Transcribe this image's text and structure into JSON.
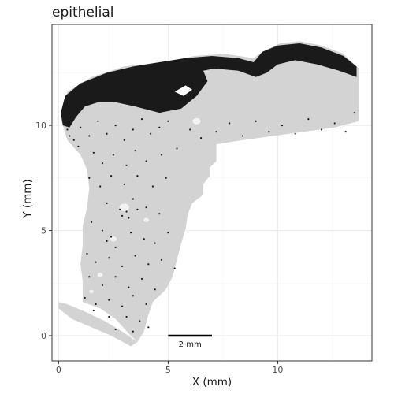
{
  "chart_data": {
    "type": "scatter",
    "title": "epithelial",
    "xlabel": "X (mm)",
    "ylabel": "Y (mm)",
    "xlim": [
      -0.3,
      14.3
    ],
    "ylim": [
      -1.2,
      14.8
    ],
    "x_ticks": [
      0,
      5,
      10
    ],
    "y_ticks": [
      0,
      5,
      10
    ],
    "grid": true,
    "legend": "none",
    "scale_bar": {
      "length_mm": 2,
      "label": "2 mm",
      "x_start": 5,
      "y": 0
    },
    "colors": {
      "background_cells": "#d3d3d3",
      "epithelial_cells": "#1a1a1a",
      "panel_border": "#333333",
      "grid_major": "#ebebeb",
      "grid_minor": "#f5f5f5"
    },
    "series": [
      {
        "name": "epithelial",
        "points": [
          [
            0.6,
            10.5
          ],
          [
            1.0,
            9.9
          ],
          [
            1.4,
            9.5
          ],
          [
            0.9,
            9.0
          ],
          [
            1.8,
            10.2
          ],
          [
            2.2,
            9.6
          ],
          [
            2.6,
            10.0
          ],
          [
            3.0,
            9.3
          ],
          [
            3.4,
            9.8
          ],
          [
            3.8,
            10.3
          ],
          [
            4.2,
            9.6
          ],
          [
            4.6,
            9.9
          ],
          [
            5.0,
            10.2
          ],
          [
            1.6,
            8.7
          ],
          [
            2.0,
            8.2
          ],
          [
            2.5,
            8.6
          ],
          [
            3.1,
            8.1
          ],
          [
            3.5,
            8.8
          ],
          [
            4.0,
            8.3
          ],
          [
            4.7,
            8.6
          ],
          [
            5.4,
            8.9
          ],
          [
            1.4,
            7.5
          ],
          [
            1.9,
            7.1
          ],
          [
            2.4,
            7.6
          ],
          [
            3.0,
            7.2
          ],
          [
            3.6,
            7.6
          ],
          [
            4.3,
            7.1
          ],
          [
            4.9,
            7.5
          ],
          [
            2.2,
            6.3
          ],
          [
            2.8,
            6.0
          ],
          [
            3.4,
            6.5
          ],
          [
            3.1,
            5.9
          ],
          [
            2.9,
            5.7
          ],
          [
            3.2,
            5.6
          ],
          [
            4.0,
            6.1
          ],
          [
            4.6,
            5.8
          ],
          [
            1.5,
            5.4
          ],
          [
            2.0,
            5.0
          ],
          [
            2.4,
            4.7
          ],
          [
            2.2,
            4.5
          ],
          [
            2.6,
            4.2
          ],
          [
            3.3,
            4.9
          ],
          [
            3.9,
            4.6
          ],
          [
            4.4,
            4.4
          ],
          [
            5.0,
            4.9
          ],
          [
            1.3,
            3.9
          ],
          [
            1.7,
            3.5
          ],
          [
            2.3,
            3.7
          ],
          [
            2.9,
            3.3
          ],
          [
            3.5,
            3.8
          ],
          [
            4.1,
            3.4
          ],
          [
            4.7,
            3.6
          ],
          [
            5.3,
            3.2
          ],
          [
            1.4,
            2.8
          ],
          [
            2.0,
            2.4
          ],
          [
            2.6,
            2.8
          ],
          [
            3.2,
            2.3
          ],
          [
            3.8,
            2.7
          ],
          [
            4.4,
            2.2
          ],
          [
            1.2,
            1.8
          ],
          [
            1.7,
            1.5
          ],
          [
            2.3,
            1.7
          ],
          [
            2.9,
            1.4
          ],
          [
            3.4,
            1.9
          ],
          [
            4.0,
            1.5
          ],
          [
            3.7,
            0.7
          ],
          [
            3.1,
            0.9
          ],
          [
            2.3,
            0.9
          ],
          [
            1.6,
            1.2
          ],
          [
            2.6,
            0.3
          ],
          [
            3.4,
            0.2
          ],
          [
            4.1,
            0.4
          ],
          [
            6.0,
            9.8
          ],
          [
            6.5,
            9.4
          ],
          [
            7.2,
            9.7
          ],
          [
            7.8,
            10.1
          ],
          [
            8.4,
            9.5
          ],
          [
            9.0,
            10.2
          ],
          [
            9.6,
            9.7
          ],
          [
            10.2,
            10.0
          ],
          [
            10.8,
            9.6
          ],
          [
            11.4,
            10.3
          ],
          [
            12.0,
            9.8
          ],
          [
            12.6,
            10.1
          ],
          [
            13.1,
            9.7
          ],
          [
            13.5,
            10.6
          ],
          [
            0.5,
            9.5
          ],
          [
            0.7,
            9.3
          ],
          [
            0.4,
            9.8
          ],
          [
            3.6,
            6.0
          ]
        ]
      }
    ]
  }
}
